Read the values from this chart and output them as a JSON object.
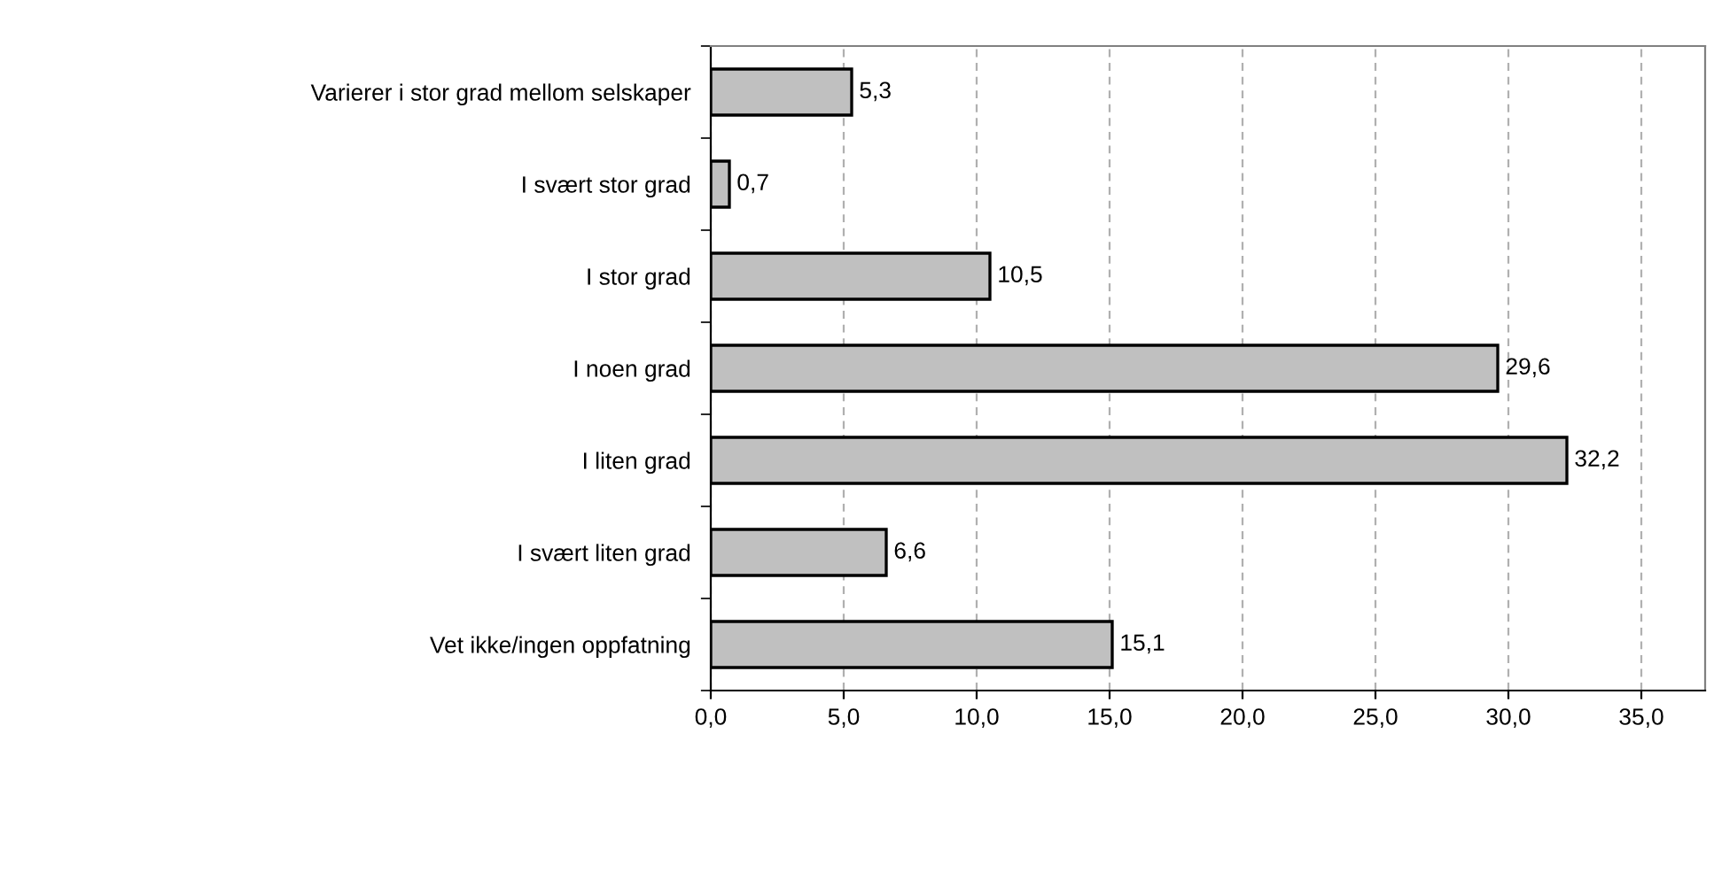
{
  "chart_data": {
    "type": "bar",
    "orientation": "horizontal",
    "categories": [
      "Varierer i stor grad mellom selskaper",
      "I svært stor grad",
      "I stor grad",
      "I noen grad",
      "I liten grad",
      "I svært liten grad",
      "Vet ikke/ingen oppfatning"
    ],
    "values": [
      5.3,
      0.7,
      10.5,
      29.6,
      32.2,
      6.6,
      15.1
    ],
    "value_labels": [
      "5,3",
      "0,7",
      "10,5",
      "29,6",
      "32,2",
      "6,6",
      "15,1"
    ],
    "color": "#c0c0c0",
    "xlim": [
      0,
      37.4
    ],
    "xticks": [
      {
        "value": 0,
        "label": "0,0"
      },
      {
        "value": 5,
        "label": "5,0"
      },
      {
        "value": 10,
        "label": "10,0"
      },
      {
        "value": 15,
        "label": "15,0"
      },
      {
        "value": 20,
        "label": "20,0"
      },
      {
        "value": 25,
        "label": "25,0"
      },
      {
        "value": 30,
        "label": "30,0"
      },
      {
        "value": 35,
        "label": "35,0"
      }
    ],
    "grid": "x",
    "legend": false
  }
}
